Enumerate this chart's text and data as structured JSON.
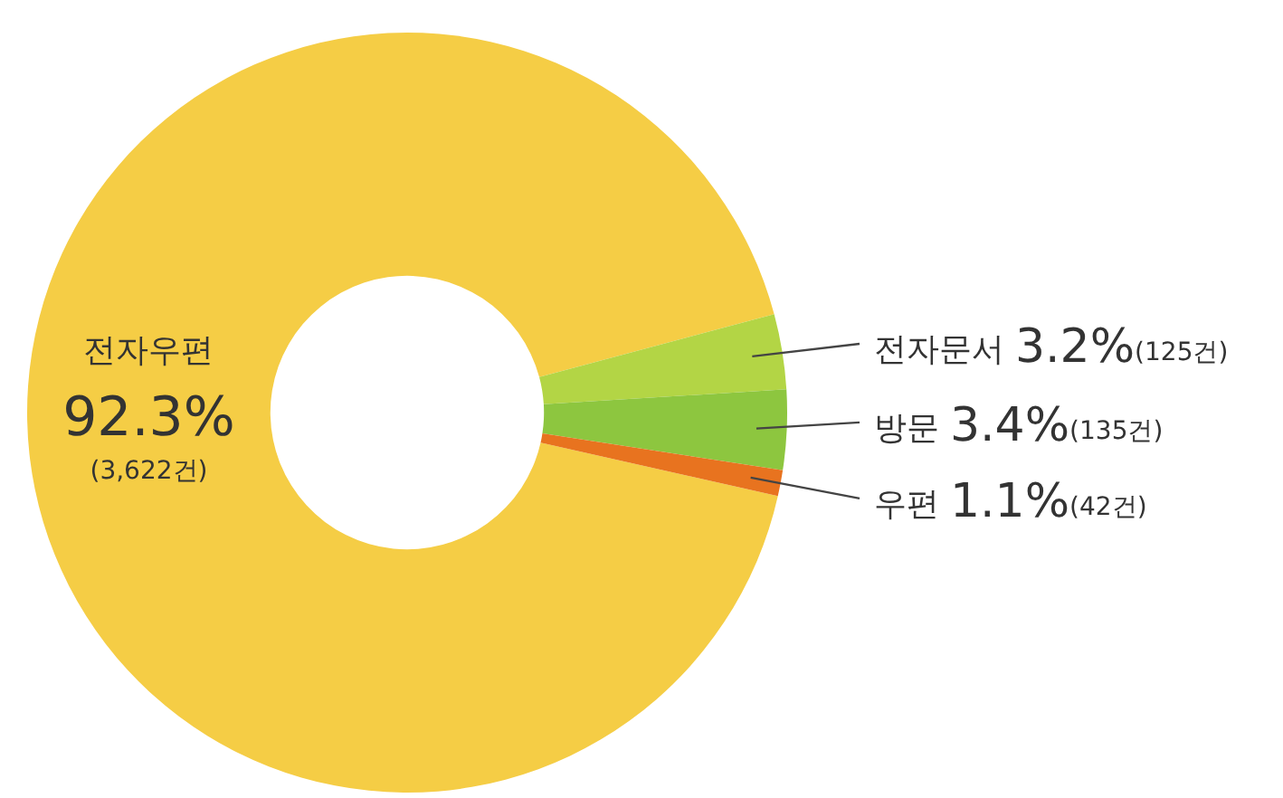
{
  "chart_data": {
    "type": "donut",
    "categories": [
      "전자우편",
      "전자문서",
      "방문",
      "우편"
    ],
    "values": [
      92.3,
      3.2,
      3.4,
      1.1
    ],
    "colors": [
      "#f5cd45",
      "#b3d545",
      "#8dc63f",
      "#e8731f"
    ],
    "value_labels": [
      "92.3%(3,622건)",
      "3.2%(125건)",
      "3.4%(135건)",
      "1.1%(42건)"
    ]
  }
}
